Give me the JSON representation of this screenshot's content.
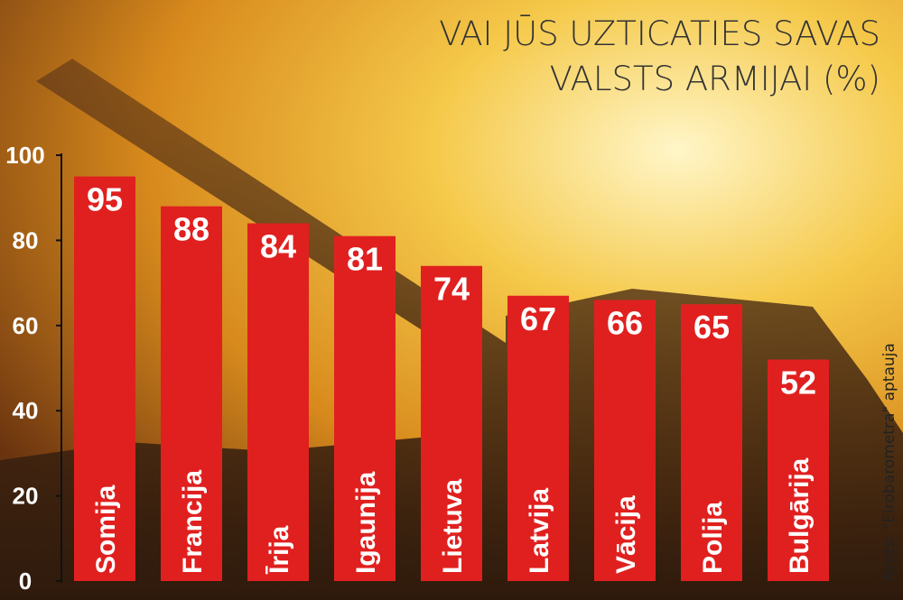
{
  "chart_data": {
    "type": "bar",
    "title": [
      "VAI JŪS UZTICATIES SAVAS",
      "VALSTS ARMIJAI (%)"
    ],
    "source": "Avots: \"Eirobarometra\" aptauja",
    "categories": [
      "Somija",
      "Francija",
      "Īrija",
      "Igaunija",
      "Lietuva",
      "Latvija",
      "Vācija",
      "Polija",
      "Bulgārija"
    ],
    "values": [
      95,
      88,
      84,
      81,
      74,
      67,
      66,
      65,
      52
    ],
    "color": "#e0201f",
    "ylim": [
      0,
      100
    ],
    "yticks": [
      0,
      20,
      40,
      60,
      80,
      100
    ]
  }
}
